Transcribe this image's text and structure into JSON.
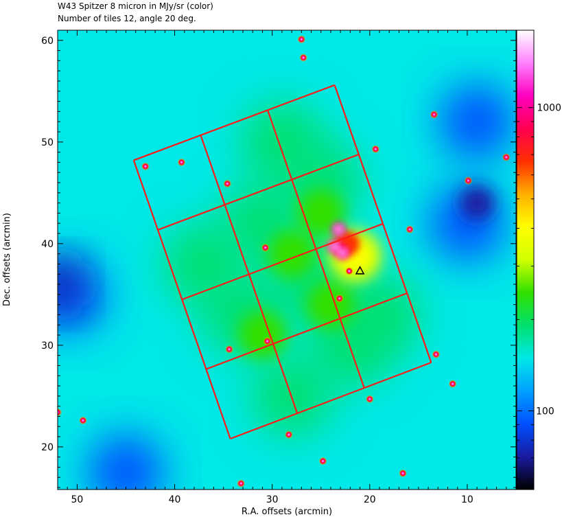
{
  "chart_data": {
    "type": "heatmap",
    "title": "W43 Spitzer 8 micron in MJy/sr (color)",
    "subtitle": "Number of tiles 12, angle 20 deg.",
    "xlabel": "R.A. offsets (arcmin)",
    "ylabel": "Dec. offsets (arcmin)",
    "xlim": [
      52,
      5
    ],
    "ylim": [
      15.8,
      61
    ],
    "x_ticks": [
      50,
      40,
      30,
      20,
      10
    ],
    "y_ticks": [
      20,
      30,
      40,
      50,
      60
    ],
    "colorbar": {
      "scale": "log",
      "range": [
        55,
        1800
      ],
      "ticks": [
        100,
        1000
      ],
      "colormap": [
        "#000000",
        "#1a1aa0",
        "#0050ff",
        "#00a0ff",
        "#00e8e8",
        "#00e070",
        "#30e000",
        "#d0ff00",
        "#ffff00",
        "#ffb000",
        "#ff3000",
        "#ff0050",
        "#ff00c0",
        "#ff80ff",
        "#ffffff"
      ]
    },
    "tiling": {
      "tiles": 12,
      "angle_deg": 20,
      "columns": 3,
      "rows": 4,
      "corners": [
        [
          44.2,
          48.2
        ],
        [
          34.3,
          20.8
        ],
        [
          13.7,
          28.3
        ],
        [
          23.6,
          55.6
        ]
      ],
      "outline_color": "#ff1a1a"
    },
    "marker": {
      "symbol": "triangle",
      "x": 21,
      "y": 37.3
    },
    "emission": {
      "peak_region": [
        [
          23.2,
          41.4
        ],
        [
          23.6,
          39.7
        ],
        [
          22.8,
          39.1
        ]
      ],
      "ring_center": [
        21.5,
        38.8
      ],
      "bright_sources": [
        [
          34.6,
          45.9
        ],
        [
          30.7,
          39.6
        ],
        [
          43.0,
          47.6
        ],
        [
          39.3,
          48.0
        ],
        [
          27.0,
          60.1
        ],
        [
          26.8,
          58.3
        ],
        [
          19.4,
          49.3
        ],
        [
          15.9,
          41.4
        ],
        [
          13.4,
          52.7
        ],
        [
          13.2,
          29.1
        ],
        [
          34.4,
          29.6
        ],
        [
          30.5,
          30.4
        ],
        [
          23.1,
          34.6
        ],
        [
          22.1,
          37.3
        ],
        [
          9.9,
          46.2
        ],
        [
          6.0,
          48.5
        ],
        [
          28.3,
          21.2
        ],
        [
          24.8,
          18.6
        ],
        [
          16.6,
          17.4
        ],
        [
          49.4,
          22.6
        ],
        [
          52.0,
          23.4
        ],
        [
          20.0,
          24.7
        ],
        [
          11.5,
          26.2
        ],
        [
          33.2,
          16.4
        ]
      ],
      "low_regions": [
        [
          51.0,
          35.0
        ],
        [
          10.0,
          42.0
        ],
        [
          9.0,
          52.0
        ],
        [
          45.0,
          17.5
        ]
      ]
    }
  }
}
